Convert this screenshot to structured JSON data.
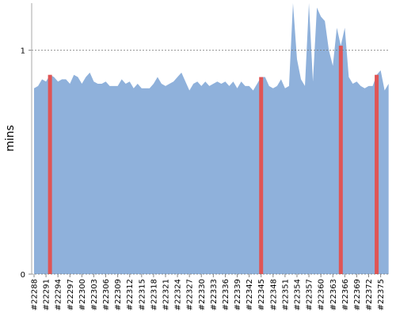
{
  "chart_data": {
    "type": "area",
    "y_label": "mins",
    "categories": [
      "#22288",
      null,
      null,
      "#22291",
      null,
      null,
      "#22294",
      null,
      null,
      "#22297",
      null,
      null,
      "#22300",
      null,
      null,
      "#22303",
      null,
      null,
      "#22306",
      null,
      null,
      "#22309",
      null,
      null,
      "#22312",
      null,
      null,
      "#22315",
      null,
      null,
      "#22318",
      null,
      null,
      "#22321",
      null,
      null,
      "#22324",
      null,
      null,
      "#22327",
      null,
      null,
      "#22330",
      null,
      null,
      "#22333",
      null,
      null,
      "#22336",
      null,
      null,
      "#22339",
      null,
      null,
      "#22342",
      null,
      null,
      "#22345",
      null,
      null,
      "#22348",
      null,
      null,
      "#22351",
      null,
      null,
      "#22354",
      null,
      null,
      "#22357",
      null,
      null,
      "#22360",
      null,
      null,
      "#22363",
      null,
      null,
      "#22366",
      null,
      null,
      "#22369",
      null,
      null,
      "#22372",
      null,
      null,
      "#22375",
      null,
      null
    ],
    "series": [
      {
        "type": "area",
        "color": "#8fb1db",
        "values": [
          0.83,
          0.84,
          0.87,
          0.86,
          0.89,
          0.88,
          0.86,
          0.87,
          0.87,
          0.85,
          0.89,
          0.88,
          0.85,
          0.88,
          0.9,
          0.86,
          0.85,
          0.85,
          0.86,
          0.84,
          0.84,
          0.84,
          0.87,
          0.85,
          0.86,
          0.83,
          0.85,
          0.83,
          0.83,
          0.83,
          0.85,
          0.88,
          0.85,
          0.84,
          0.85,
          0.86,
          0.88,
          0.9,
          0.86,
          0.82,
          0.85,
          0.86,
          0.84,
          0.86,
          0.84,
          0.85,
          0.86,
          0.85,
          0.86,
          0.84,
          0.86,
          0.83,
          0.86,
          0.84,
          0.84,
          0.82,
          0.85,
          0.88,
          0.88,
          0.84,
          0.83,
          0.84,
          0.87,
          0.83,
          0.84,
          1.21,
          0.96,
          0.87,
          0.84,
          1.21,
          0.86,
          1.19,
          1.15,
          1.13,
          1.0,
          0.93,
          1.1,
          1.02,
          1.1,
          0.88,
          0.85,
          0.86,
          0.84,
          0.83,
          0.84,
          0.84,
          0.89,
          0.91,
          0.82,
          0.85
        ]
      },
      {
        "type": "bar",
        "color": "#e05555",
        "values": [
          null,
          null,
          null,
          null,
          0.89,
          null,
          null,
          null,
          null,
          null,
          null,
          null,
          null,
          null,
          null,
          null,
          null,
          null,
          null,
          null,
          null,
          null,
          null,
          null,
          null,
          null,
          null,
          null,
          null,
          null,
          null,
          null,
          null,
          null,
          null,
          null,
          null,
          null,
          null,
          null,
          null,
          null,
          null,
          null,
          null,
          null,
          null,
          null,
          null,
          null,
          null,
          null,
          null,
          null,
          null,
          null,
          null,
          0.88,
          null,
          null,
          null,
          null,
          null,
          null,
          null,
          null,
          null,
          null,
          null,
          null,
          null,
          null,
          null,
          null,
          null,
          null,
          null,
          1.02,
          null,
          null,
          null,
          null,
          null,
          null,
          null,
          null,
          0.89,
          null,
          null,
          null
        ]
      }
    ],
    "ylim": [
      0,
      1.21
    ],
    "yticks": [
      0,
      1
    ],
    "grid": true
  }
}
